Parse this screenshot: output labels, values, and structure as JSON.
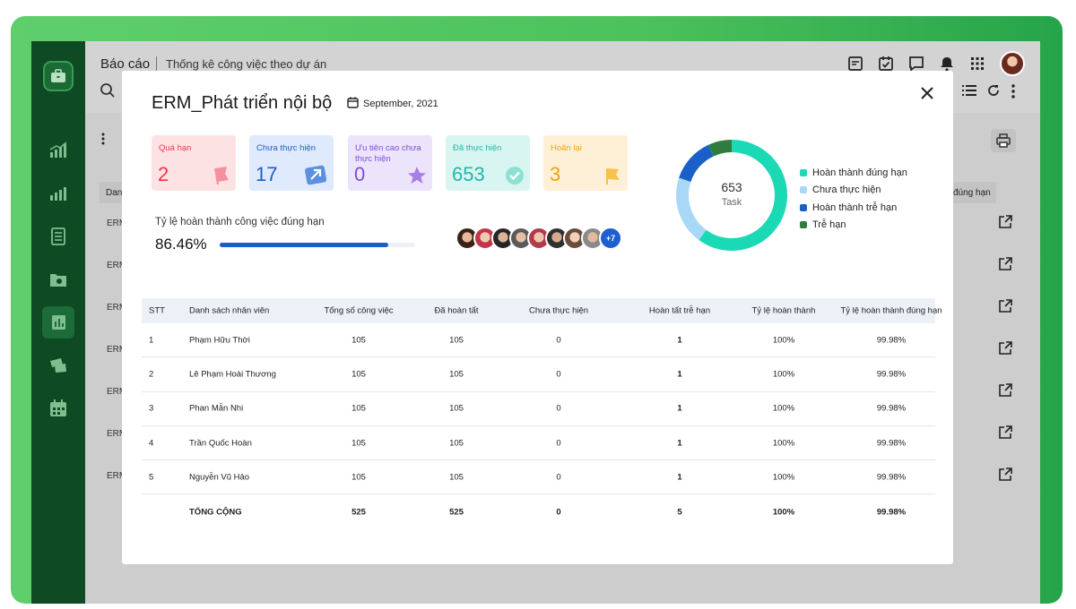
{
  "app": {
    "title": "Báo cáo",
    "subtitle": "Thống kê công việc theo dự án"
  },
  "background": {
    "row_label": "ERM",
    "header_left": "Dan",
    "header_right": "đúng hạn",
    "row_count": 7
  },
  "modal": {
    "project_name": "ERM_Phát triển nội bộ",
    "date": "September, 2021",
    "cards": [
      {
        "label": "Quá hạn",
        "value": "2",
        "bg": "#fde2e4",
        "color": "#e8384f",
        "icon": "flag-icon"
      },
      {
        "label": "Chưa thực hiện",
        "value": "17",
        "bg": "#dfeafc",
        "color": "#1c5fc9",
        "icon": "arrow-up-right-icon"
      },
      {
        "label": "Ưu tiên cao chưa thực hiện",
        "value": "0",
        "bg": "#ece4fb",
        "color": "#7c4ddb",
        "icon": "star-icon"
      },
      {
        "label": "Đã thực hiện",
        "value": "653",
        "bg": "#d9f5f2",
        "color": "#1fb8a6",
        "icon": "check-circle-icon"
      },
      {
        "label": "Hoãn lại",
        "value": "3",
        "bg": "#fdf0d6",
        "color": "#f2a20d",
        "icon": "flag-icon"
      }
    ],
    "completion_rate": {
      "label": "Tỷ lệ hoàn thành công việc đúng hạn",
      "value": "86.46%",
      "fraction": 0.8646
    },
    "members_more": "+7",
    "donut": {
      "total": "653",
      "unit": "Task",
      "segments": [
        {
          "label": "Hoàn thành đúng hạn",
          "color": "#1bd9b5",
          "value": 0.6
        },
        {
          "label": "Chưa thực hiện",
          "color": "#a8d8f5",
          "value": 0.2
        },
        {
          "label": "Hoàn thành trễ hạn",
          "color": "#1a5fc7",
          "value": 0.13
        },
        {
          "label": "Trễ hạn",
          "color": "#2e7d3e",
          "value": 0.07
        }
      ]
    },
    "table": {
      "headers": [
        "STT",
        "Danh sách nhân viên",
        "Tổng số công việc",
        "Đã hoàn tất",
        "Chưa thực hiện",
        "Hoàn tất trễ hạn",
        "Tỷ lệ hoàn thành",
        "Tỷ lệ hoàn thành đúng hạn"
      ],
      "rows": [
        [
          "1",
          "Phạm Hữu Thời",
          "105",
          "105",
          "0",
          "1",
          "100%",
          "99.98%"
        ],
        [
          "2",
          "Lê Phạm Hoài Thương",
          "105",
          "105",
          "0",
          "1",
          "100%",
          "99.98%"
        ],
        [
          "3",
          "Phan Mẫn Nhi",
          "105",
          "105",
          "0",
          "1",
          "100%",
          "99.98%"
        ],
        [
          "4",
          "Trần Quốc Hoàn",
          "105",
          "105",
          "0",
          "1",
          "100%",
          "99.98%"
        ],
        [
          "5",
          "Nguyễn Vũ Hảo",
          "105",
          "105",
          "0",
          "1",
          "100%",
          "99.98%"
        ]
      ],
      "total": [
        "",
        "TỔNG CỘNG",
        "525",
        "525",
        "0",
        "5",
        "100%",
        "99.98%"
      ]
    }
  }
}
